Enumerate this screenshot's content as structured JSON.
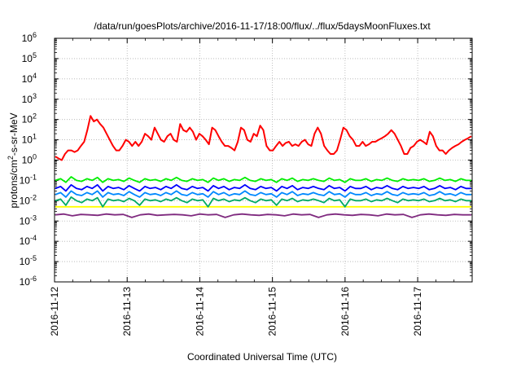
{
  "chart_data": {
    "type": "line",
    "title": "/data/run/goesPlots/archive/2016-11-17/18:00/flux/../flux/5daysMoonFluxes.txt",
    "xlabel": "Coordinated Universal Time (UTC)",
    "ylabel": "protons/cm²-s-sr-MeV",
    "yscale": "log",
    "ylim_exponents": [
      -6,
      6
    ],
    "yticks": [
      {
        "base": "10",
        "exp": "6"
      },
      {
        "base": "10",
        "exp": "5"
      },
      {
        "base": "10",
        "exp": "4"
      },
      {
        "base": "10",
        "exp": "3"
      },
      {
        "base": "10",
        "exp": "2"
      },
      {
        "base": "10",
        "exp": "1"
      },
      {
        "base": "10",
        "exp": "0"
      },
      {
        "base": "10",
        "exp": "-1"
      },
      {
        "base": "10",
        "exp": "-2"
      },
      {
        "base": "10",
        "exp": "-3"
      },
      {
        "base": "10",
        "exp": "-4"
      },
      {
        "base": "10",
        "exp": "-5"
      },
      {
        "base": "10",
        "exp": "-6"
      }
    ],
    "xlim": [
      "2016-11-12",
      "2016-11-17 18:00"
    ],
    "xticks": [
      "2016-11-12",
      "2016-11-13",
      "2016-11-14",
      "2016-11-15",
      "2016-11-16",
      "2016-11-17"
    ],
    "grid": true,
    "series": [
      {
        "color": "#ff0000",
        "kind": "red",
        "values": [
          1.5,
          1.2,
          1,
          2,
          3,
          3,
          2.5,
          3,
          5,
          8,
          30,
          150,
          80,
          100,
          60,
          40,
          20,
          10,
          5,
          3,
          3,
          5,
          10,
          8,
          5,
          8,
          5,
          8,
          20,
          15,
          10,
          40,
          20,
          10,
          8,
          15,
          20,
          10,
          8,
          60,
          30,
          25,
          40,
          25,
          10,
          20,
          15,
          10,
          6,
          40,
          30,
          15,
          8,
          5,
          5,
          4,
          3,
          8,
          40,
          30,
          10,
          8,
          20,
          15,
          50,
          30,
          5,
          3,
          3,
          5,
          8,
          5,
          7,
          8,
          5,
          6,
          5,
          8,
          10,
          6,
          5,
          20,
          40,
          20,
          5,
          3,
          2,
          2,
          3,
          10,
          40,
          30,
          15,
          10,
          5,
          5,
          8,
          5,
          6,
          8,
          8,
          10,
          12,
          15,
          20,
          30,
          20,
          10,
          5,
          2,
          2,
          4,
          5,
          8,
          10,
          8,
          6,
          25,
          15,
          5,
          3,
          3,
          2,
          3,
          4,
          5,
          6,
          8,
          10,
          12,
          15
        ]
      },
      {
        "color": "#00ee00",
        "kind": "green",
        "values": [
          0.1,
          0.12,
          0.08,
          0.15,
          0.1,
          0.09,
          0.12,
          0.1,
          0.14,
          0.08,
          0.12,
          0.1,
          0.11,
          0.09,
          0.13,
          0.1,
          0.08,
          0.12,
          0.1,
          0.11,
          0.09,
          0.12,
          0.1,
          0.14,
          0.1,
          0.09,
          0.12,
          0.1,
          0.11,
          0.08,
          0.13,
          0.1,
          0.12,
          0.09,
          0.11,
          0.1,
          0.14,
          0.1,
          0.09,
          0.12,
          0.1,
          0.11,
          0.08,
          0.12,
          0.1,
          0.13,
          0.09,
          0.11,
          0.1,
          0.12,
          0.1,
          0.09,
          0.13,
          0.1,
          0.11,
          0.08,
          0.12,
          0.1,
          0.1,
          0.12,
          0.09,
          0.11,
          0.1,
          0.13,
          0.1,
          0.09,
          0.12,
          0.1,
          0.11,
          0.1,
          0.12,
          0.09,
          0.1,
          0.13,
          0.1,
          0.11,
          0.09,
          0.12,
          0.1,
          0.1
        ]
      },
      {
        "color": "#0000ff",
        "kind": "blue",
        "values": [
          0.04,
          0.05,
          0.03,
          0.06,
          0.04,
          0.035,
          0.05,
          0.04,
          0.06,
          0.03,
          0.05,
          0.04,
          0.045,
          0.035,
          0.055,
          0.04,
          0.03,
          0.05,
          0.04,
          0.045,
          0.035,
          0.05,
          0.04,
          0.06,
          0.04,
          0.035,
          0.05,
          0.04,
          0.045,
          0.03,
          0.055,
          0.04,
          0.05,
          0.035,
          0.045,
          0.04,
          0.06,
          0.04,
          0.035,
          0.05,
          0.04,
          0.045,
          0.03,
          0.05,
          0.04,
          0.055,
          0.035,
          0.045,
          0.04,
          0.05,
          0.04,
          0.035,
          0.055,
          0.04,
          0.045,
          0.03,
          0.05,
          0.04,
          0.04,
          0.05,
          0.035,
          0.045,
          0.04,
          0.055,
          0.04,
          0.035,
          0.05,
          0.04,
          0.045,
          0.04,
          0.05,
          0.035,
          0.04,
          0.055,
          0.04,
          0.045,
          0.035,
          0.05,
          0.04,
          0.04
        ]
      },
      {
        "color": "#0088ff",
        "kind": "blue2",
        "values": [
          0.02,
          0.025,
          0.015,
          0.03,
          0.02,
          0.018,
          0.025,
          0.02,
          0.03,
          0.015,
          0.025,
          0.02,
          0.022,
          0.018,
          0.028,
          0.02,
          0.015,
          0.025,
          0.02,
          0.022,
          0.018,
          0.025,
          0.02,
          0.03,
          0.02,
          0.018,
          0.025,
          0.02,
          0.022,
          0.015,
          0.028,
          0.02,
          0.025,
          0.018,
          0.022,
          0.02,
          0.03,
          0.02,
          0.018,
          0.025,
          0.02,
          0.022,
          0.015,
          0.025,
          0.02,
          0.028,
          0.018,
          0.022,
          0.02,
          0.025,
          0.02,
          0.018,
          0.028,
          0.02,
          0.022,
          0.015,
          0.025,
          0.02,
          0.02,
          0.025,
          0.018,
          0.022,
          0.02,
          0.028,
          0.02,
          0.018,
          0.025,
          0.02,
          0.022,
          0.02,
          0.025,
          0.018,
          0.02,
          0.028,
          0.02,
          0.022,
          0.018,
          0.025,
          0.02,
          0.02
        ]
      },
      {
        "color": "#00aa66",
        "kind": "teal",
        "values": [
          0.01,
          0.012,
          0.006,
          0.015,
          0.01,
          0.008,
          0.012,
          0.01,
          0.014,
          0.005,
          0.012,
          0.01,
          0.011,
          0.009,
          0.013,
          0.01,
          0.006,
          0.012,
          0.01,
          0.011,
          0.009,
          0.012,
          0.01,
          0.014,
          0.01,
          0.008,
          0.012,
          0.01,
          0.011,
          0.005,
          0.013,
          0.01,
          0.012,
          0.009,
          0.011,
          0.01,
          0.014,
          0.01,
          0.008,
          0.012,
          0.01,
          0.011,
          0.006,
          0.012,
          0.01,
          0.013,
          0.009,
          0.011,
          0.01,
          0.012,
          0.01,
          0.008,
          0.013,
          0.01,
          0.011,
          0.005,
          0.012,
          0.01,
          0.01,
          0.012,
          0.009,
          0.011,
          0.01,
          0.013,
          0.01,
          0.008,
          0.012,
          0.01,
          0.011,
          0.01,
          0.012,
          0.009,
          0.01,
          0.013,
          0.01,
          0.011,
          0.009,
          0.012,
          0.01,
          0.01
        ]
      },
      {
        "color": "#ffff00",
        "kind": "yellow",
        "values": [
          0.005,
          0.005,
          0.005,
          0.005,
          0.005,
          0.005,
          0.005,
          0.005,
          0.005,
          0.005,
          0.005,
          0.005,
          0.005,
          0.005,
          0.005,
          0.005,
          0.005,
          0.005,
          0.005,
          0.005,
          0.005,
          0.005,
          0.005,
          0.005,
          0.005,
          0.005,
          0.005,
          0.005,
          0.005,
          0.005,
          0.005,
          0.005,
          0.005,
          0.005,
          0.005,
          0.005,
          0.005,
          0.005,
          0.005,
          0.005
        ]
      },
      {
        "color": "#7f2a7f",
        "kind": "purple",
        "values": [
          0.002,
          0.0022,
          0.0018,
          0.0021,
          0.002,
          0.0019,
          0.0022,
          0.002,
          0.0021,
          0.0015,
          0.002,
          0.0022,
          0.0019,
          0.002,
          0.0021,
          0.002,
          0.0018,
          0.0022,
          0.002,
          0.0021,
          0.0015,
          0.002,
          0.0022,
          0.002,
          0.0019,
          0.0021,
          0.002,
          0.0018,
          0.0022,
          0.002,
          0.0021,
          0.0015,
          0.002,
          0.0022,
          0.002,
          0.0019,
          0.0021,
          0.002,
          0.0018,
          0.0022,
          0.002,
          0.0021,
          0.0015,
          0.002,
          0.0022,
          0.002,
          0.0019,
          0.0021,
          0.002,
          0.002
        ]
      }
    ]
  }
}
